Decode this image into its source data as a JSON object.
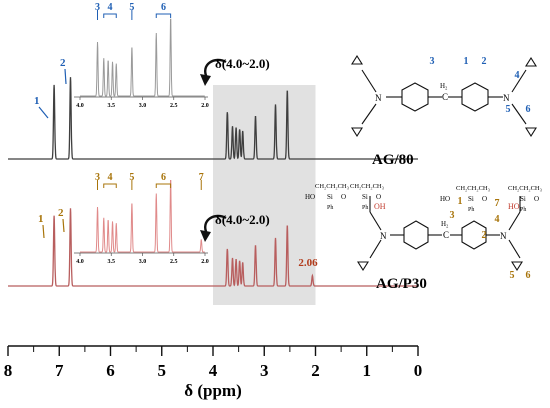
{
  "chart_data": {
    "type": "line",
    "xlabel": "δ (ppm)",
    "xlim": [
      8,
      0
    ],
    "x_ticks": [
      "8",
      "7",
      "6",
      "5",
      "4",
      "3",
      "2",
      "1",
      "0"
    ],
    "inset_ticks": [
      "4.0",
      "3.5",
      "3.0",
      "2.5",
      "2.0"
    ],
    "zoom_label": "δ(4.0~2.0)",
    "highlight_range": [
      4.0,
      2.0
    ],
    "colors": {
      "top": "#3f3f3f",
      "bottom": "#b85e5e",
      "top_labels": "#1f5fb4",
      "bottom_labels": "#a8740a"
    },
    "series": [
      {
        "name": "AG/80",
        "peaks": [
          {
            "x": 7.1,
            "h": 0.95,
            "label": "1"
          },
          {
            "x": 6.78,
            "h": 1.05,
            "label": "2"
          },
          {
            "x": 3.72,
            "h": 0.6,
            "label": "3"
          },
          {
            "x": 3.62,
            "h": 0.42,
            "label": "4"
          },
          {
            "x": 3.55,
            "h": 0.4,
            "label": "4"
          },
          {
            "x": 3.48,
            "h": 0.38,
            "label": "4"
          },
          {
            "x": 3.42,
            "h": 0.36,
            "label": "4"
          },
          {
            "x": 3.17,
            "h": 0.55,
            "label": "5"
          },
          {
            "x": 2.78,
            "h": 0.7,
            "label": "6"
          },
          {
            "x": 2.55,
            "h": 0.88,
            "label": "6"
          }
        ]
      },
      {
        "name": "AG/P30",
        "peaks": [
          {
            "x": 7.1,
            "h": 0.95,
            "label": "1"
          },
          {
            "x": 6.78,
            "h": 1.05,
            "label": "2"
          },
          {
            "x": 3.72,
            "h": 0.5,
            "label": "3"
          },
          {
            "x": 3.62,
            "h": 0.38,
            "label": "4"
          },
          {
            "x": 3.55,
            "h": 0.36,
            "label": "4"
          },
          {
            "x": 3.48,
            "h": 0.34,
            "label": "4"
          },
          {
            "x": 3.42,
            "h": 0.32,
            "label": "4"
          },
          {
            "x": 3.17,
            "h": 0.55,
            "label": "5"
          },
          {
            "x": 2.78,
            "h": 0.65,
            "label": "6"
          },
          {
            "x": 2.55,
            "h": 0.82,
            "label": "6"
          },
          {
            "x": 2.06,
            "h": 0.14,
            "label": "7"
          }
        ]
      }
    ],
    "annotations": {
      "top_peak_labels": [
        "1",
        "2",
        "3",
        "4",
        "5",
        "6"
      ],
      "bottom_peak_labels": [
        "1",
        "2",
        "3",
        "4",
        "5",
        "6",
        "7"
      ],
      "peak_value": "2.06",
      "top_structure_numbers": [
        "3",
        "1",
        "2",
        "4",
        "5",
        "6"
      ],
      "bottom_structure_numbers": [
        "3",
        "1",
        "2",
        "7",
        "4",
        "5",
        "6"
      ],
      "struct_ch2": "H₂",
      "struct_c": "C",
      "struct_n": "N",
      "struct_oh": "OH",
      "struct_ho": "HO",
      "struct_o": "O",
      "siloxane_chain": "CH₂CH₂CH₃",
      "siloxane_si": "Si",
      "siloxane_ph": "Ph",
      "siloxane_ho": "HO",
      "siloxane_o": "O"
    }
  }
}
